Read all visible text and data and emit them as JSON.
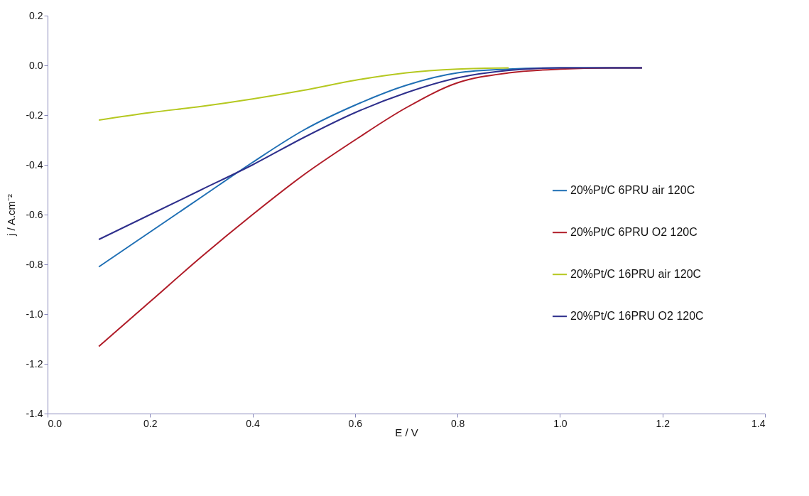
{
  "chart_data": {
    "type": "line",
    "xlabel": "E / V",
    "ylabel": "j / A.cm⁻²",
    "xlim": [
      0,
      1.4
    ],
    "xticks": [
      {
        "value": 0,
        "label": "0.0"
      },
      {
        "value": 0.2,
        "label": "0.2"
      },
      {
        "value": 0.4,
        "label": "0.4"
      },
      {
        "value": 0.6,
        "label": "0.6"
      },
      {
        "value": 0.8,
        "label": "0.8"
      },
      {
        "value": 1,
        "label": "1.0"
      },
      {
        "value": 1.2,
        "label": "1.2"
      },
      {
        "value": 1.4,
        "label": "1.4"
      }
    ],
    "ylim": [
      -1.4,
      0.2
    ],
    "yticks": [
      {
        "value": -1.4,
        "label": "-1.4"
      },
      {
        "value": -1.2,
        "label": "-1.2"
      },
      {
        "value": -1,
        "label": "-1.0"
      },
      {
        "value": -0.8,
        "label": "-0.8"
      },
      {
        "value": -0.6,
        "label": "-0.6"
      },
      {
        "value": -0.4,
        "label": "-0.4"
      },
      {
        "value": -0.2,
        "label": "-0.2"
      },
      {
        "value": 0,
        "label": "0.0"
      },
      {
        "value": 0.2,
        "label": "0.2"
      }
    ],
    "grid": false,
    "legend": "right",
    "marker": "none",
    "line_style": "solid",
    "series": [
      {
        "name": "20%Pt/C 6PRU air 120C",
        "color": "#1f6fb4",
        "x": [
          0.1,
          0.2,
          0.3,
          0.4,
          0.5,
          0.6,
          0.7,
          0.8,
          0.9,
          1.0,
          1.1,
          1.16
        ],
        "values": [
          -0.81,
          -0.67,
          -0.53,
          -0.39,
          -0.26,
          -0.16,
          -0.08,
          -0.03,
          -0.015,
          -0.01,
          -0.01,
          -0.01
        ]
      },
      {
        "name": "20%Pt/C 6PRU O2 120C",
        "color": "#b01c28",
        "x": [
          0.1,
          0.2,
          0.3,
          0.4,
          0.5,
          0.6,
          0.7,
          0.8,
          0.9,
          1.0,
          1.1,
          1.16
        ],
        "values": [
          -1.13,
          -0.95,
          -0.77,
          -0.6,
          -0.44,
          -0.3,
          -0.17,
          -0.07,
          -0.03,
          -0.015,
          -0.01,
          -0.01
        ]
      },
      {
        "name": "20%Pt/C 16PRU air 120C",
        "color": "#b5c820",
        "x": [
          0.1,
          0.2,
          0.3,
          0.4,
          0.5,
          0.6,
          0.7,
          0.8,
          0.9
        ],
        "values": [
          -0.22,
          -0.19,
          -0.165,
          -0.135,
          -0.1,
          -0.06,
          -0.03,
          -0.015,
          -0.01
        ]
      },
      {
        "name": "20%Pt/C 16PRU O2 120C",
        "color": "#2e2f8c",
        "x": [
          0.1,
          0.2,
          0.3,
          0.4,
          0.5,
          0.6,
          0.7,
          0.8,
          0.9,
          1.0,
          1.1,
          1.16
        ],
        "values": [
          -0.7,
          -0.6,
          -0.5,
          -0.4,
          -0.29,
          -0.19,
          -0.11,
          -0.05,
          -0.02,
          -0.01,
          -0.01,
          -0.01
        ]
      }
    ]
  }
}
